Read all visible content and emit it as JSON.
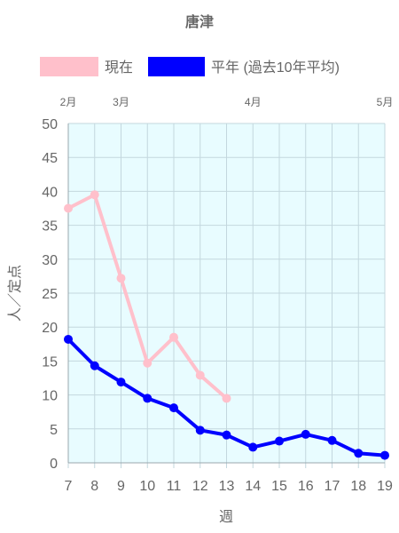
{
  "chart_data": {
    "type": "line",
    "title": "唐津",
    "xlabel": "週",
    "ylabel": "人／定点",
    "x": [
      7,
      8,
      9,
      10,
      11,
      12,
      13,
      14,
      15,
      16,
      17,
      18,
      19
    ],
    "xlim": [
      7,
      19
    ],
    "ylim": [
      0,
      50
    ],
    "y_ticks": [
      0,
      5,
      10,
      15,
      20,
      25,
      30,
      35,
      40,
      45,
      50
    ],
    "month_labels": [
      {
        "label": "2月",
        "week": 7
      },
      {
        "label": "3月",
        "week": 9
      },
      {
        "label": "4月",
        "week": 14
      },
      {
        "label": "5月",
        "week": 19
      }
    ],
    "grid": true,
    "legend_position": "top",
    "plot_background": "#e8fcff",
    "series": [
      {
        "name": "現在",
        "color": "#ffc0cb",
        "x": [
          7,
          8,
          9,
          10,
          11,
          12,
          13
        ],
        "values": [
          37.5,
          39.5,
          27.2,
          14.7,
          18.5,
          12.9,
          9.5
        ]
      },
      {
        "name": "平年 (過去10年平均)",
        "color": "#0000ff",
        "x": [
          7,
          8,
          9,
          10,
          11,
          12,
          13,
          14,
          15,
          16,
          17,
          18,
          19
        ],
        "values": [
          18.2,
          14.3,
          11.9,
          9.5,
          8.1,
          4.8,
          4.1,
          2.3,
          3.2,
          4.2,
          3.3,
          1.4,
          1.1
        ]
      }
    ]
  }
}
